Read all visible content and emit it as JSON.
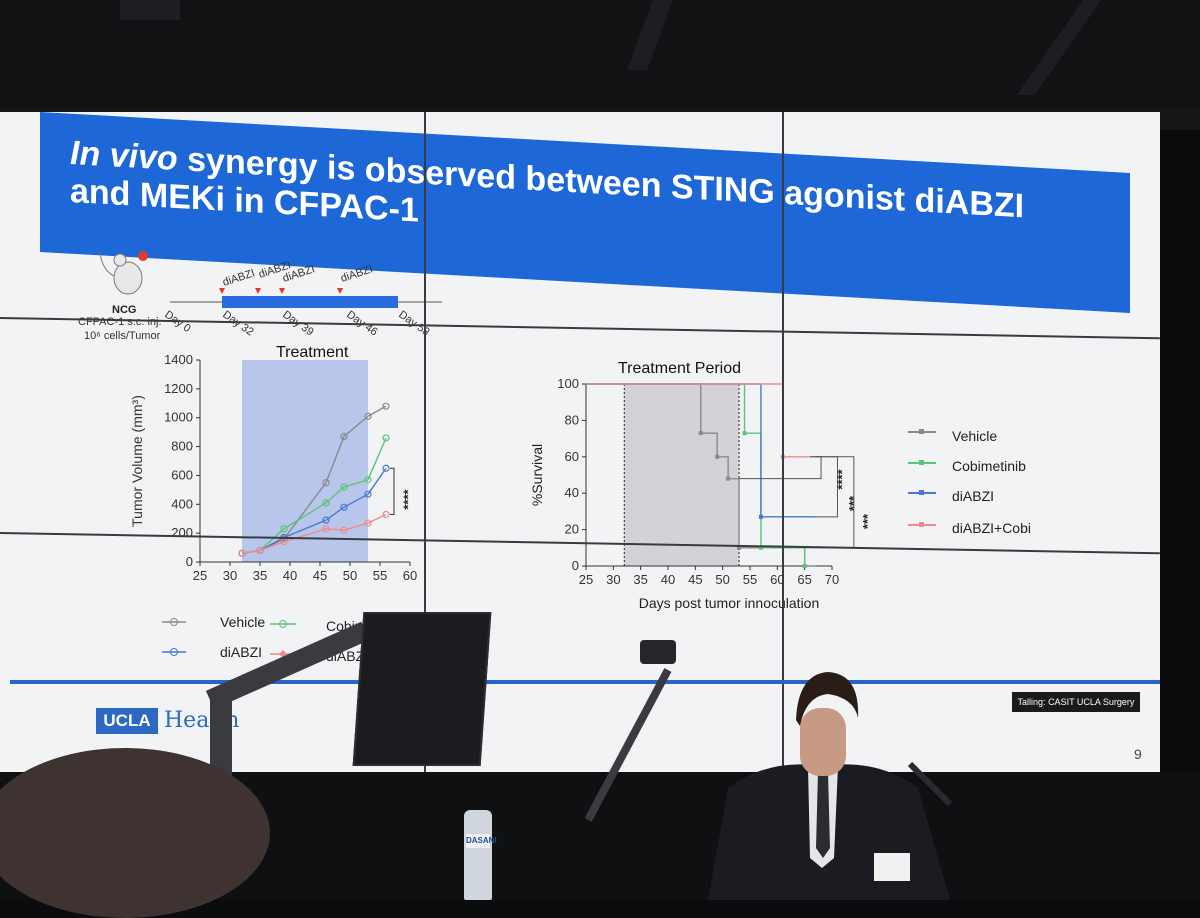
{
  "slide": {
    "title_italic": "In vivo",
    "title_line1_rest": " synergy is observed between STING agonist diABZI",
    "title_line2": "and MEKi in CFPAC-1",
    "mouse_label": "NCG",
    "injection_line1": "CFPAC-1 s.c. inj.",
    "injection_line2": "10⁶ cells/Tumor",
    "timeline_doses": [
      "diABZI",
      "diABZI",
      "diABZI",
      "diABZI"
    ],
    "timeline_days": [
      "Day 0",
      "Day 32",
      "Day 39",
      "Day 46",
      "Day 53"
    ],
    "left_chart_treatment_label": "Treatment",
    "right_chart_treatment_label": "Treatment Period",
    "left_significance": "****",
    "right_significance": [
      "****",
      "***",
      "***"
    ],
    "left_legend": [
      "Vehicle",
      "Cobimetinib",
      "diABZI",
      "diABZ"
    ],
    "right_legend": [
      "Vehicle",
      "Cobimetinib",
      "diABZI",
      "diABZI+Cobi"
    ],
    "footer_logo_box": "UCLA",
    "footer_logo_text": "Health",
    "caption_tag": "Talling: CASIT UCLA Surgery",
    "page_number": "9",
    "bottle_label": "DASANI"
  },
  "colors": {
    "banner": "#1d68d6",
    "vehicle": "#8a8a8a",
    "cobimetinib": "#5cc47a",
    "diabzi": "#4a78d0",
    "combo": "#f08a8e",
    "treatment_shade": "#9fb2e8"
  },
  "chart_data": [
    {
      "type": "line",
      "ylabel": "Tumor Volume (mm³)",
      "xlabel": "",
      "xlim": [
        25,
        60
      ],
      "ylim": [
        0,
        1400
      ],
      "xticks": [
        25,
        30,
        35,
        40,
        45,
        50,
        55,
        60
      ],
      "yticks": [
        0,
        200,
        400,
        600,
        800,
        1000,
        1200,
        1400
      ],
      "treatment_window": [
        32,
        53
      ],
      "x": [
        32,
        35,
        39,
        46,
        49,
        53,
        56
      ],
      "series": [
        {
          "name": "Vehicle",
          "values": [
            60,
            80,
            160,
            550,
            870,
            1010,
            1080
          ]
        },
        {
          "name": "Cobimetinib",
          "values": [
            60,
            80,
            230,
            410,
            520,
            570,
            860
          ]
        },
        {
          "name": "diABZI",
          "values": [
            60,
            80,
            170,
            290,
            380,
            470,
            650
          ]
        },
        {
          "name": "diABZ",
          "values": [
            60,
            80,
            140,
            230,
            220,
            270,
            330
          ]
        }
      ]
    },
    {
      "type": "line",
      "xlabel": "Days post tumor innoculation",
      "ylabel": "%Survival",
      "xlim": [
        25,
        70
      ],
      "ylim": [
        0,
        100
      ],
      "xticks": [
        25,
        30,
        35,
        40,
        45,
        50,
        55,
        60,
        65,
        70
      ],
      "yticks": [
        0,
        20,
        40,
        60,
        80,
        100
      ],
      "treatment_window": [
        32,
        53
      ],
      "series": [
        {
          "name": "Vehicle",
          "steps": [
            [
              25,
              100
            ],
            [
              46,
              100
            ],
            [
              46,
              73
            ],
            [
              49,
              73
            ],
            [
              49,
              60
            ],
            [
              51,
              60
            ],
            [
              51,
              48
            ],
            [
              53,
              48
            ],
            [
              53,
              10
            ],
            [
              65,
              10
            ],
            [
              65,
              0
            ],
            [
              67,
              0
            ]
          ]
        },
        {
          "name": "Cobimetinib",
          "steps": [
            [
              25,
              100
            ],
            [
              54,
              100
            ],
            [
              54,
              73
            ],
            [
              57,
              73
            ],
            [
              57,
              10
            ],
            [
              65,
              10
            ],
            [
              65,
              0
            ]
          ]
        },
        {
          "name": "diABZI",
          "steps": [
            [
              25,
              100
            ],
            [
              57,
              100
            ],
            [
              57,
              27
            ],
            [
              67,
              27
            ]
          ]
        },
        {
          "name": "diABZI+Cobi",
          "steps": [
            [
              25,
              100
            ],
            [
              61,
              100
            ],
            [
              61,
              60
            ],
            [
              67,
              60
            ]
          ]
        }
      ]
    }
  ]
}
